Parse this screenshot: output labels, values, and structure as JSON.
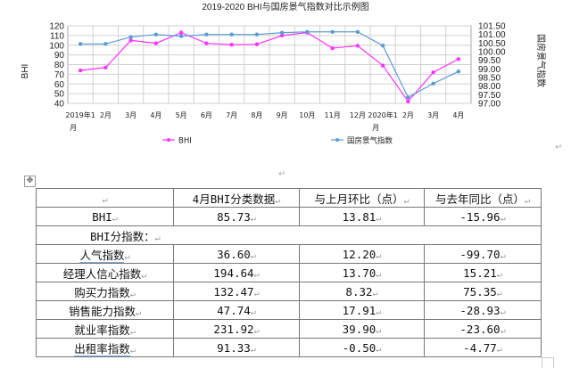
{
  "chart_data": {
    "type": "line",
    "title": "2019-2020 BHI与国房景气指数对比示例图",
    "categories": [
      "2019年1月",
      "2月",
      "3月",
      "4月",
      "5月",
      "6月",
      "7月",
      "8月",
      "9月",
      "10月",
      "11月",
      "12月",
      "2020年1月",
      "2月",
      "3月",
      "4月"
    ],
    "series": [
      {
        "name": "BHI",
        "axis": "left",
        "color": "#ff33ff",
        "values": [
          74,
          77,
          105,
          102,
          113,
          102,
          100.5,
          101,
          110,
          113,
          97,
          99.5,
          79,
          42,
          72,
          85.73
        ]
      },
      {
        "name": "国房景气指数",
        "axis": "right",
        "color": "#5b9bd5",
        "values": [
          100.45,
          100.45,
          100.85,
          101.0,
          100.9,
          101.0,
          101.0,
          101.0,
          101.1,
          101.15,
          101.15,
          101.15,
          100.35,
          97.35,
          98.15,
          98.85
        ]
      }
    ],
    "ylabel": "BHI",
    "ylabel_right": "国房景气指数",
    "ylim": [
      40,
      120
    ],
    "ylim_right": [
      97.0,
      101.5
    ],
    "yticks": [
      120,
      110,
      100,
      90,
      80,
      70,
      60,
      50,
      40
    ],
    "yticks_right": [
      "101.50",
      "101.00",
      "100.50",
      "100.00",
      "99.50",
      "99.00",
      "98.50",
      "98.00",
      "97.50",
      "97.00"
    ],
    "grid": true,
    "legend_position": "bottom"
  },
  "table": {
    "headers": [
      "",
      "4月BHI分类数据",
      "与上月环比（点）",
      "与去年同比（点）"
    ],
    "rows": [
      {
        "label": "BHI",
        "value": "85.73",
        "mom": "13.81",
        "yoy": "-15.96"
      },
      {
        "label": "BHI分指数：",
        "section": true
      },
      {
        "label": "人气指数",
        "value": "36.60",
        "mom": "12.20",
        "yoy": "-99.70"
      },
      {
        "label": "经理人信心指数",
        "value": "194.64",
        "mom": "13.70",
        "yoy": "15.21"
      },
      {
        "label": "购买力指数",
        "value": "132.47",
        "mom": "8.32",
        "yoy": "75.35"
      },
      {
        "label": "销售能力指数",
        "value": "47.74",
        "mom": "17.91",
        "yoy": "-28.93"
      },
      {
        "label": "就业率指数",
        "value": "231.92",
        "mom": "39.90",
        "yoy": "-23.60"
      },
      {
        "label": "出租率指数",
        "value": "91.33",
        "mom": "-0.50",
        "yoy": "-4.77"
      }
    ]
  },
  "marks": {
    "paragraph": "↵",
    "move": "✥"
  }
}
